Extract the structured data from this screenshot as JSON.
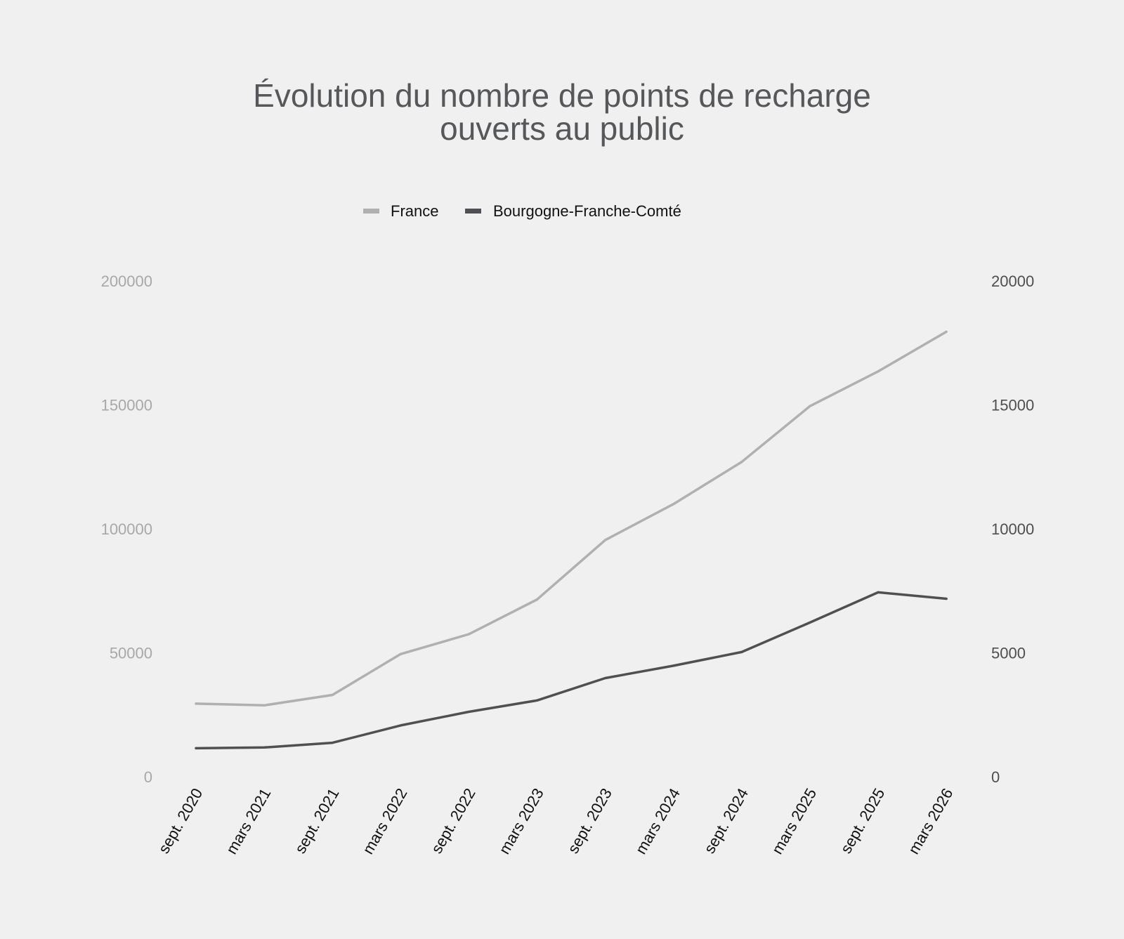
{
  "chart_data": {
    "type": "line",
    "title_lines": [
      "Évolution du nombre de points de recharge",
      "ouverts au public"
    ],
    "xlabel": "",
    "categories": [
      "sept. 2020",
      "mars 2021",
      "sept. 2021",
      "mars 2022",
      "sept. 2022",
      "mars 2023",
      "sept. 2023",
      "mars 2024",
      "sept. 2024",
      "mars 2025",
      "sept. 2025",
      "mars 2026"
    ],
    "y_left": {
      "range": [
        0,
        200000
      ],
      "ticks": [
        "0",
        "50000",
        "100000",
        "150000",
        "200000"
      ],
      "tick_values": [
        0,
        50000,
        100000,
        150000,
        200000
      ]
    },
    "y_right": {
      "range": [
        0,
        20000
      ],
      "ticks": [
        "0",
        "5000",
        "10000",
        "15000",
        "20000"
      ],
      "tick_values": [
        0,
        5000,
        10000,
        15000,
        20000
      ]
    },
    "series": [
      {
        "name": "France",
        "axis": "left",
        "color": "#b0b0b0",
        "values": [
          29500,
          28800,
          33000,
          49500,
          57500,
          71500,
          95500,
          110000,
          127000,
          149500,
          163500,
          179500
        ]
      },
      {
        "name": "Bourgogne-Franche-Comté",
        "axis": "right",
        "color": "#505054",
        "values": [
          1150,
          1180,
          1370,
          2070,
          2620,
          3080,
          3980,
          4480,
          5030,
          6220,
          7440,
          7180
        ]
      }
    ],
    "legend_position": "top-center",
    "grid": false
  }
}
